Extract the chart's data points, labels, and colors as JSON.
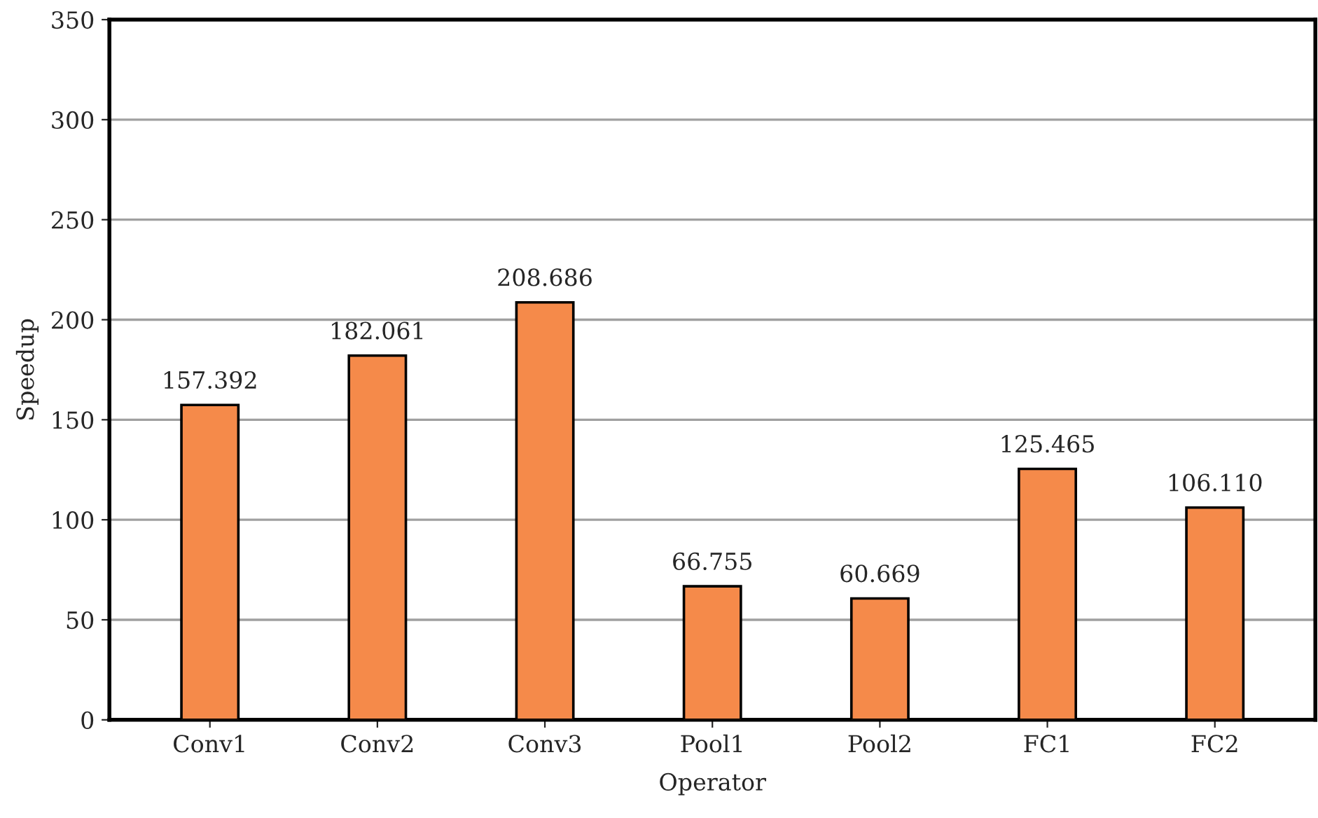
{
  "chart_data": {
    "type": "bar",
    "xlabel": "Operator",
    "ylabel": "Speedup",
    "categories": [
      "Conv1",
      "Conv2",
      "Conv3",
      "Pool1",
      "Pool2",
      "FC1",
      "FC2"
    ],
    "values": [
      157.392,
      182.061,
      208.686,
      66.755,
      60.669,
      125.465,
      106.11
    ],
    "value_labels": [
      "157.392",
      "182.061",
      "208.686",
      "66.755",
      "60.669",
      "125.465",
      "106.110"
    ],
    "color": "#f58a4a",
    "ylim": [
      0,
      350
    ],
    "yticks": [
      0,
      50,
      100,
      150,
      200,
      250,
      300,
      350
    ],
    "grid": "y"
  }
}
